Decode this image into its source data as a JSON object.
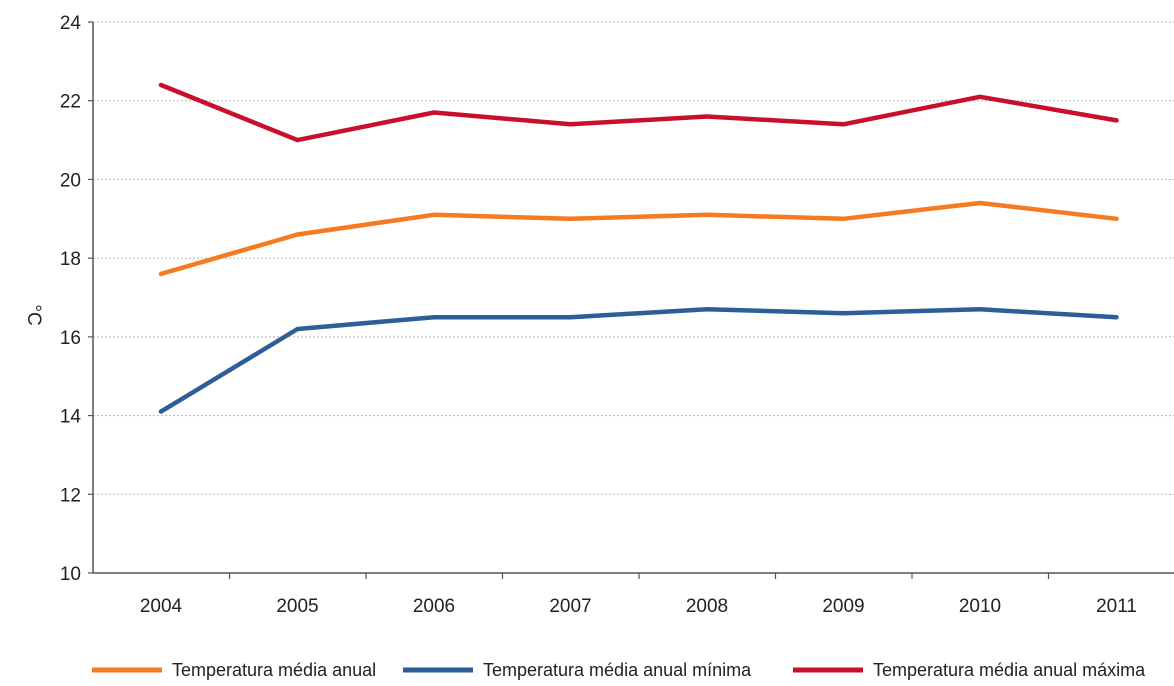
{
  "chart_data": {
    "type": "line",
    "ylabel": "°C",
    "xlabel": "",
    "ylim": [
      10,
      24
    ],
    "yticks": [
      10,
      12,
      14,
      16,
      18,
      20,
      22,
      24
    ],
    "grid": "horizontal dotted",
    "legend_position": "bottom",
    "categories": [
      "2004",
      "2005",
      "2006",
      "2007",
      "2008",
      "2009",
      "2010",
      "2011"
    ],
    "series": [
      {
        "name": "Temperatura média anual",
        "color": "#F47B20",
        "values": [
          17.6,
          18.6,
          19.1,
          19.0,
          19.1,
          19.0,
          19.4,
          19.0
        ]
      },
      {
        "name": "Temperatura média anual mínima",
        "color": "#2E5E98",
        "values": [
          14.1,
          16.2,
          16.5,
          16.5,
          16.7,
          16.6,
          16.7,
          16.5
        ]
      },
      {
        "name": "Temperatura média anual máxima",
        "color": "#C8102E",
        "values": [
          22.4,
          21.0,
          21.7,
          21.4,
          21.6,
          21.4,
          22.1,
          21.5
        ]
      }
    ]
  }
}
